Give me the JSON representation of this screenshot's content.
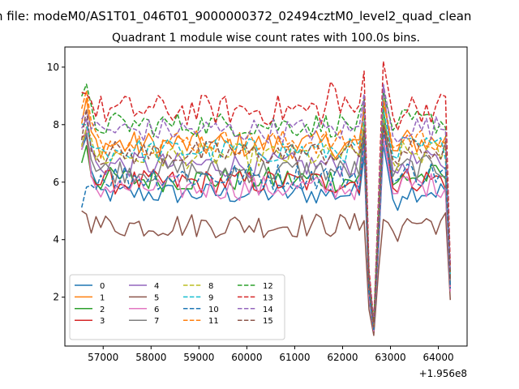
{
  "chart_data": {
    "type": "line",
    "suptitle": "n file: modeM0/AS1T01_046T01_9000000372_02494cztM0_level2_quad_clean",
    "title": "Quadrant 1 module wise count rates with 100.0s bins.",
    "xlabel": "",
    "ylabel": "",
    "x_offset_label": "+1.956e8",
    "xlim": [
      56200,
      64600
    ],
    "ylim": [
      0.3,
      10.7
    ],
    "x_ticks": [
      57000,
      58000,
      59000,
      60000,
      61000,
      62000,
      63000,
      64000
    ],
    "x_tick_labels": [
      "57000",
      "58000",
      "59000",
      "60000",
      "61000",
      "62000",
      "63000",
      "64000"
    ],
    "y_ticks": [
      2,
      4,
      6,
      8,
      10
    ],
    "y_tick_labels": [
      "2",
      "4",
      "6",
      "8",
      "10"
    ],
    "grid": false,
    "legend_position": "lower-left",
    "legend_columns": 4,
    "x_start": 56550,
    "x_step": 100,
    "n_points": 78,
    "series": [
      {
        "name": "0",
        "color": "#1f77b4",
        "dash": "solid",
        "base": 5.6,
        "noise": 0.18,
        "first": 7.0,
        "peak": 7.3,
        "end": 2.3
      },
      {
        "name": "1",
        "color": "#ff7f0e",
        "dash": "solid",
        "base": 7.3,
        "noise": 0.22,
        "first": 8.0,
        "peak": 8.8,
        "end": 2.6
      },
      {
        "name": "2",
        "color": "#2ca02c",
        "dash": "solid",
        "base": 6.1,
        "noise": 0.2,
        "first": 6.8,
        "peak": 8.6,
        "end": 2.4
      },
      {
        "name": "3",
        "color": "#d62728",
        "dash": "solid",
        "base": 6.0,
        "noise": 0.2,
        "first": 7.2,
        "peak": 8.0,
        "end": 2.3
      },
      {
        "name": "4",
        "color": "#9467bd",
        "dash": "solid",
        "base": 6.6,
        "noise": 0.2,
        "first": 7.6,
        "peak": 9.4,
        "end": 2.6
      },
      {
        "name": "5",
        "color": "#8c564b",
        "dash": "solid",
        "base": 4.5,
        "noise": 0.2,
        "first": 4.8,
        "peak": 4.7,
        "end": 1.9
      },
      {
        "name": "6",
        "color": "#e377c2",
        "dash": "solid",
        "base": 5.8,
        "noise": 0.2,
        "first": 6.9,
        "peak": 7.6,
        "end": 2.2
      },
      {
        "name": "7",
        "color": "#7f7f7f",
        "dash": "solid",
        "base": 6.4,
        "noise": 0.2,
        "first": 7.4,
        "peak": 8.2,
        "end": 2.5
      },
      {
        "name": "8",
        "color": "#bcbd22",
        "dash": "dashed",
        "base": 6.9,
        "noise": 0.2,
        "first": 7.5,
        "peak": 8.3,
        "end": 2.6
      },
      {
        "name": "9",
        "color": "#17becf",
        "dash": "dashed",
        "base": 7.1,
        "noise": 0.2,
        "first": 7.8,
        "peak": 8.5,
        "end": 2.7
      },
      {
        "name": "10",
        "color": "#1f77b4",
        "dash": "dashed",
        "base": 6.2,
        "noise": 0.22,
        "first": 5.6,
        "peak": 7.8,
        "end": 2.3
      },
      {
        "name": "11",
        "color": "#ff7f0e",
        "dash": "dashed",
        "base": 7.4,
        "noise": 0.2,
        "first": 8.4,
        "peak": 8.9,
        "end": 2.8
      },
      {
        "name": "12",
        "color": "#2ca02c",
        "dash": "dashed",
        "base": 8.0,
        "noise": 0.2,
        "first": 8.6,
        "peak": 9.1,
        "end": 2.9
      },
      {
        "name": "13",
        "color": "#d62728",
        "dash": "dashed",
        "base": 8.5,
        "noise": 0.25,
        "first": 9.0,
        "peak": 10.2,
        "end": 3.1
      },
      {
        "name": "14",
        "color": "#9467bd",
        "dash": "dashed",
        "base": 7.8,
        "noise": 0.2,
        "first": 8.2,
        "peak": 9.4,
        "end": 2.9
      },
      {
        "name": "15",
        "color": "#8c564b",
        "dash": "dashed",
        "base": 7.0,
        "noise": 0.2,
        "first": 7.9,
        "peak": 8.0,
        "end": 2.6
      }
    ]
  }
}
